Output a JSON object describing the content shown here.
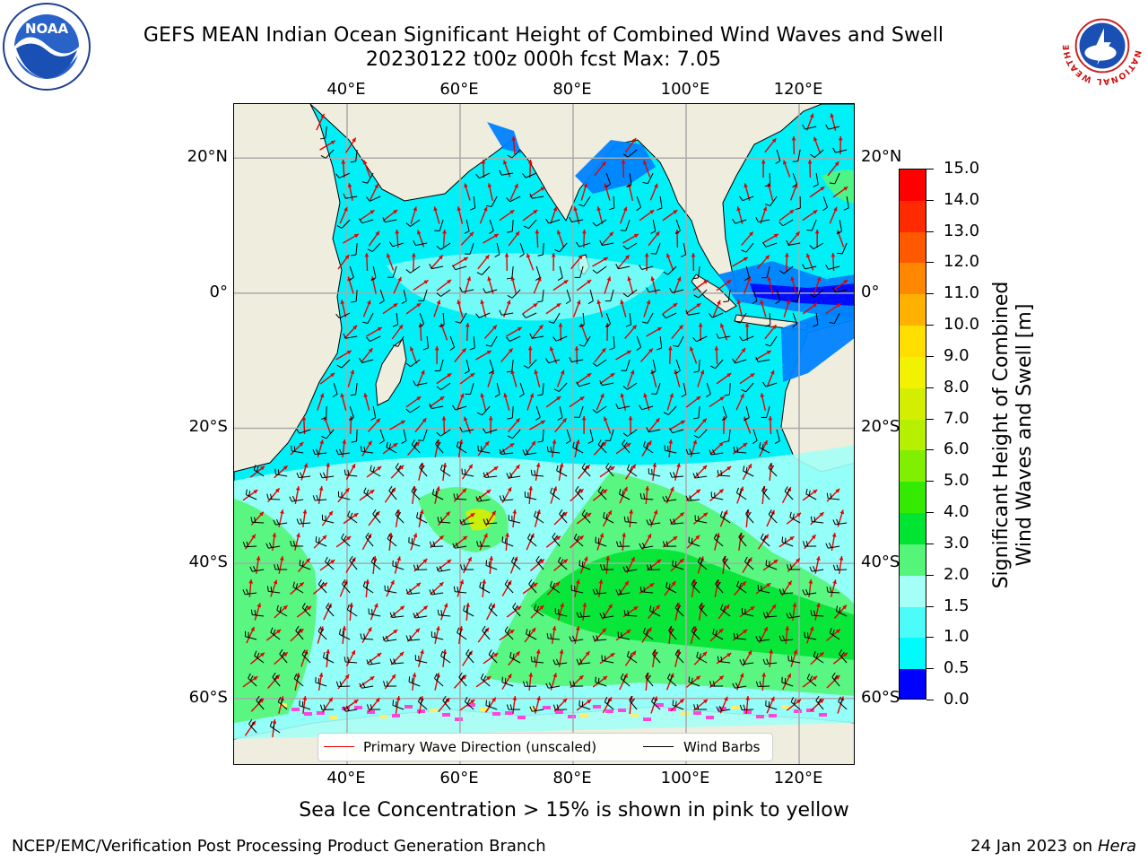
{
  "title": {
    "line1": "GEFS MEAN Indian Ocean Significant Height of Combined Wind Waves and Swell",
    "line2": "20230122 t00z 000h fcst   Max: 7.05"
  },
  "logos": {
    "noaa": {
      "icon": "noaa-logo",
      "text": "NOAA"
    },
    "nws": {
      "icon": "nws-logo",
      "text": "NATIONAL WEATHER SERVICE"
    }
  },
  "axes": {
    "lon_labels": [
      "40°E",
      "60°E",
      "80°E",
      "100°E",
      "120°E"
    ],
    "lon_values": [
      40,
      60,
      80,
      100,
      120
    ],
    "lat_labels": [
      "20°N",
      "0°",
      "20°S",
      "40°S",
      "60°S"
    ],
    "lat_values": [
      20,
      0,
      -20,
      -40,
      -60
    ],
    "lon_range": [
      20,
      130
    ],
    "lat_range": [
      28,
      -70
    ],
    "grid": true
  },
  "legend": {
    "wave_label": "Primary Wave Direction (unscaled)",
    "wind_label": "Wind Barbs",
    "wave_color": "#e60000",
    "wind_color": "#000000"
  },
  "colorbar": {
    "label_line1": "Significant Height of Combined",
    "label_line2": "Wind Waves and Swell [m]",
    "ticks": [
      "15.0",
      "14.0",
      "13.0",
      "12.0",
      "11.0",
      "10.0",
      "9.0",
      "8.0",
      "7.0",
      "6.0",
      "5.0",
      "4.0",
      "3.0",
      "2.0",
      "1.5",
      "1.0",
      "0.5",
      "0.0"
    ],
    "colors": [
      "#fe0000",
      "#ff2a00",
      "#ff5900",
      "#ff8800",
      "#ffb100",
      "#ffde00",
      "#f2f200",
      "#d4ee00",
      "#b6f000",
      "#80f000",
      "#33ea00",
      "#00e432",
      "#55f57a",
      "#a4fff7",
      "#4cfcf9",
      "#00fbfd",
      "#0082ff",
      "#0000ff"
    ]
  },
  "caption": "Sea Ice Concentration > 15% is shown in pink to yellow",
  "footer": {
    "left": "NCEP/EMC/Verification Post Processing Product Generation Branch",
    "right_date": "24 Jan 2023 on ",
    "right_host": "Hera"
  },
  "colors": {
    "land": "#efedde",
    "ocean_low": "#00f0f8",
    "ocean_mid": "#a4fff7",
    "waves_high": "#55f57a",
    "waves_higher": "#00e432",
    "coast_low": "#0082ff",
    "deep_low": "#0000ff",
    "peak": "#d4ee00",
    "ice": "#ff44dd"
  }
}
